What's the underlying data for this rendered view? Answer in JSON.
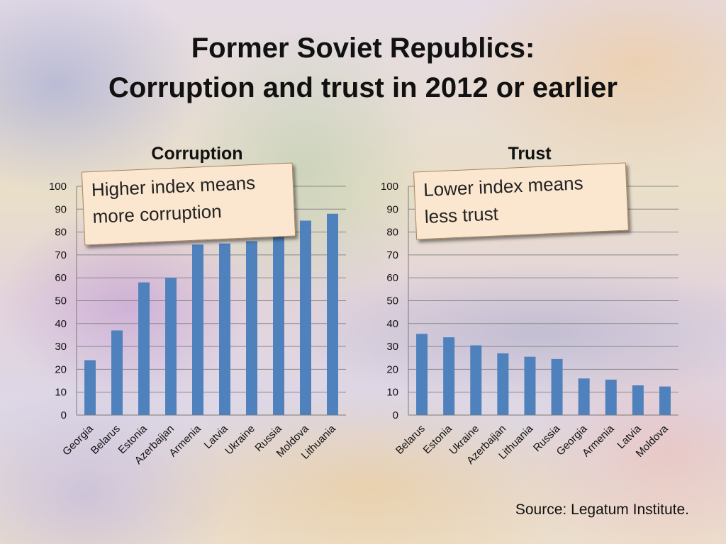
{
  "slide": {
    "title_line1": "Former Soviet Republics:",
    "title_line2": "Corruption and trust in 2012 or earlier",
    "source": "Source: Legatum Institute."
  },
  "chart_data": [
    {
      "type": "bar",
      "title": "Corruption",
      "annotation": "Higher index means more corruption",
      "categories": [
        "Georgia",
        "Belarus",
        "Estonia",
        "Azerbaijan",
        "Armenia",
        "Latvia",
        "Ukraine",
        "Russia",
        "Moldova",
        "Lithuania"
      ],
      "values": [
        24,
        37,
        58,
        60,
        74.5,
        75,
        76,
        78.5,
        85,
        88
      ],
      "ylim": [
        0,
        100
      ],
      "yticks": [
        0,
        10,
        20,
        30,
        40,
        50,
        60,
        70,
        80,
        90,
        100
      ],
      "grid": true,
      "bar_color": "#4f81bd"
    },
    {
      "type": "bar",
      "title": "Trust",
      "annotation": "Lower index means less trust",
      "categories": [
        "Belarus",
        "Estonia",
        "Ukraine",
        "Azerbaijan",
        "Lithuania",
        "Russia",
        "Georgia",
        "Armenia",
        "Latvia",
        "Moldova"
      ],
      "values": [
        35.5,
        34,
        30.5,
        27,
        25.5,
        24.5,
        16,
        15.5,
        13,
        12.5
      ],
      "ylim": [
        0,
        100
      ],
      "yticks": [
        0,
        10,
        20,
        30,
        40,
        50,
        60,
        70,
        80,
        90,
        100
      ],
      "grid": true,
      "bar_color": "#4f81bd"
    }
  ]
}
